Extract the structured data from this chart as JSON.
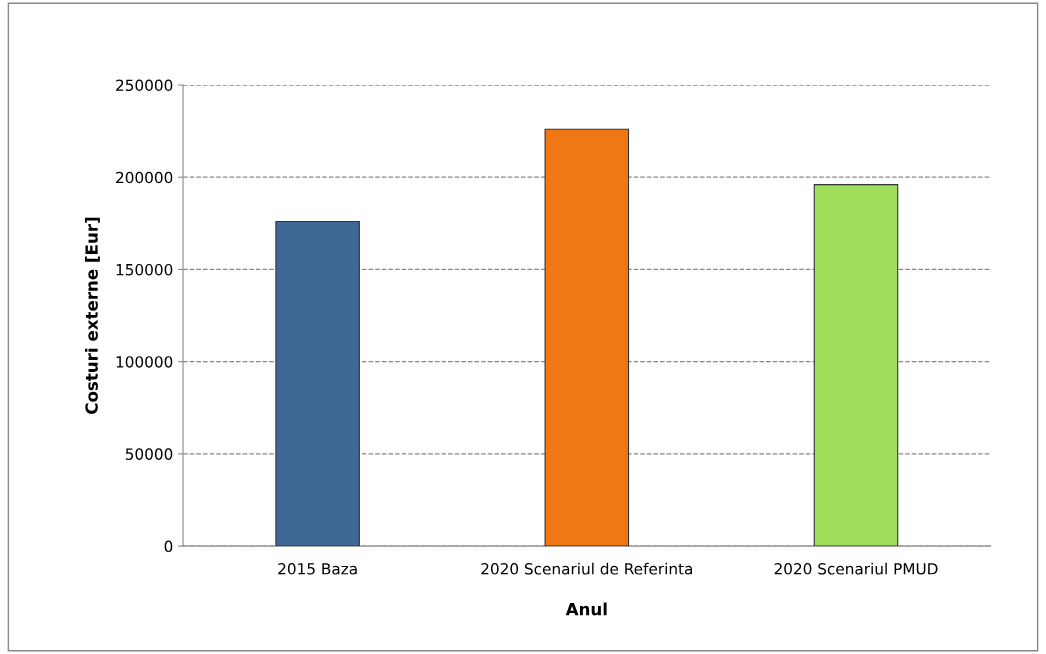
{
  "chart_data": {
    "type": "bar",
    "categories": [
      "2015 Baza",
      "2020 Scenariul de Referinta",
      "2020 Scenariul PMUD"
    ],
    "values": [
      176000,
      226000,
      196000
    ],
    "colors": [
      "#3f6897",
      "#f07814",
      "#9ede5a"
    ],
    "xlabel": "Anul",
    "ylabel": "Costuri externe [Eur]",
    "ylim": [
      0,
      250000
    ],
    "yticks": [
      0,
      50000,
      100000,
      150000,
      200000,
      250000
    ],
    "grid": "y"
  }
}
